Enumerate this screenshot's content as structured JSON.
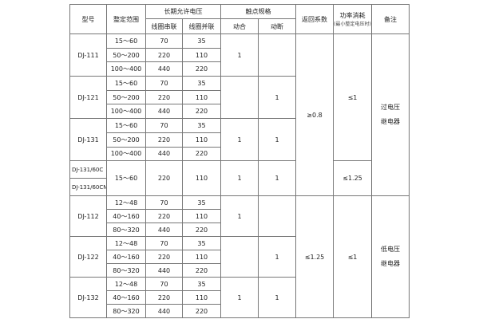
{
  "header": {
    "model": "型号",
    "setting_range": "整定范围",
    "long_term_voltage": "长期允许电压",
    "coil_series": "线圈串联",
    "coil_parallel": "线圈并联",
    "contact_spec": "触点规格",
    "make": "动合",
    "break": "动断",
    "return_coefficient": "返回系数",
    "power": "功率消耗",
    "power_note": "(最小整定电压时)",
    "remarks": "备注"
  },
  "groups": [
    {
      "models": [
        "DJ-111"
      ],
      "ranges": [
        {
          "range": "15～60",
          "series": "70",
          "parallel": "35"
        },
        {
          "range": "50～200",
          "series": "220",
          "parallel": "110"
        },
        {
          "range": "100～400",
          "series": "440",
          "parallel": "220"
        }
      ],
      "make": "1",
      "break": ""
    },
    {
      "models": [
        "DJ-121"
      ],
      "ranges": [
        {
          "range": "15～60",
          "series": "70",
          "parallel": "35"
        },
        {
          "range": "50～200",
          "series": "220",
          "parallel": "110"
        },
        {
          "range": "100～400",
          "series": "440",
          "parallel": "220"
        }
      ],
      "make": "",
      "break": "1"
    },
    {
      "models": [
        "DJ-131"
      ],
      "ranges": [
        {
          "range": "15～60",
          "series": "70",
          "parallel": "35"
        },
        {
          "range": "50～200",
          "series": "220",
          "parallel": "110"
        },
        {
          "range": "100～400",
          "series": "440",
          "parallel": "220"
        }
      ],
      "make": "1",
      "break": "1"
    },
    {
      "models": [
        "DJ-131/60C",
        "DJ-131/60CN"
      ],
      "ranges": [
        {
          "range": "15～60",
          "series": "220",
          "parallel": "110"
        }
      ],
      "make": "1",
      "break": "1"
    },
    {
      "models": [
        "DJ-112"
      ],
      "ranges": [
        {
          "range": "12～48",
          "series": "70",
          "parallel": "35"
        },
        {
          "range": "40～160",
          "series": "220",
          "parallel": "110"
        },
        {
          "range": "80～320",
          "series": "440",
          "parallel": "220"
        }
      ],
      "make": "1",
      "break": ""
    },
    {
      "models": [
        "DJ-122"
      ],
      "ranges": [
        {
          "range": "12～48",
          "series": "70",
          "parallel": "35"
        },
        {
          "range": "40～160",
          "series": "220",
          "parallel": "110"
        },
        {
          "range": "80～320",
          "series": "440",
          "parallel": "220"
        }
      ],
      "make": "",
      "break": "1"
    },
    {
      "models": [
        "DJ-132"
      ],
      "ranges": [
        {
          "range": "12～48",
          "series": "70",
          "parallel": "35"
        },
        {
          "range": "40～160",
          "series": "220",
          "parallel": "110"
        },
        {
          "range": "80～320",
          "series": "440",
          "parallel": "220"
        }
      ],
      "make": "1",
      "break": "1"
    }
  ],
  "return_coefficient": [
    {
      "value": "≥0.8",
      "groups": 4
    },
    {
      "value": "≤1.25",
      "groups": 3
    }
  ],
  "power": [
    {
      "value": "≤1",
      "groups": 3
    },
    {
      "value": "≤1.25",
      "groups": 1
    },
    {
      "value": "≤1",
      "groups": 3
    }
  ],
  "remarks": [
    {
      "lines": [
        "过电压",
        "继电器"
      ],
      "groups": 4
    },
    {
      "lines": [
        "低电压",
        "继电器"
      ],
      "groups": 3
    }
  ]
}
